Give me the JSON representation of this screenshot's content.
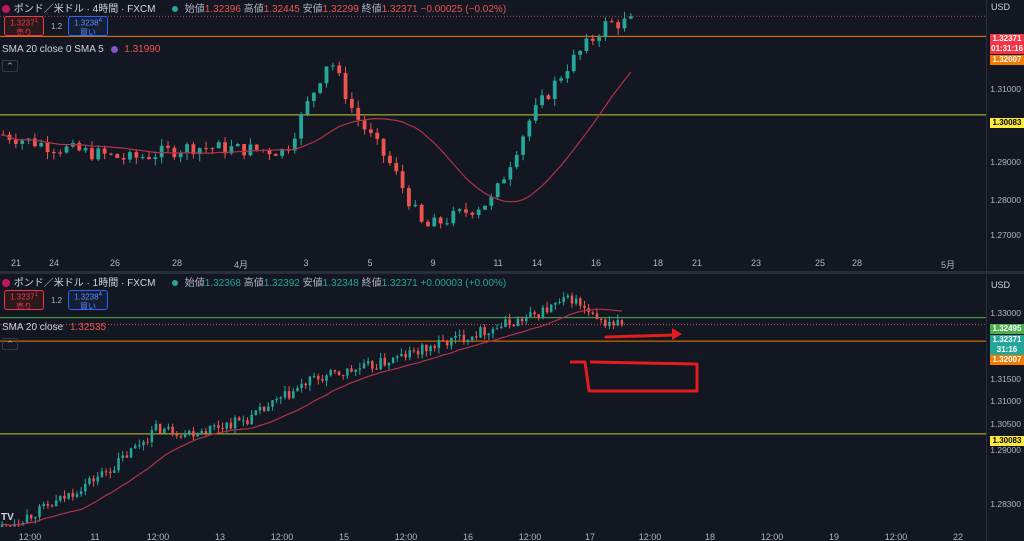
{
  "colors": {
    "bg": "#131722",
    "up": "#26a69a",
    "down": "#ef5350",
    "sma": "#b2334a",
    "yellow_line": "#c8c832",
    "orange_line": "#f57c00",
    "green_line": "#4caf50",
    "annotation": "#e11d1d"
  },
  "top_chart": {
    "title": "ポンド／米ドル · 4時間 · FXCM",
    "ohlc": {
      "open_label": "始値",
      "open": "1.32396",
      "high_label": "高値",
      "high": "1.32445",
      "low_label": "安値",
      "low": "1.32299",
      "close_label": "終値",
      "close": "1.32371",
      "change": "−0.00025 (−0.02%)"
    },
    "sell": {
      "price": "1.3237",
      "sup": "1",
      "label": "売り"
    },
    "buy": {
      "price": "1.3238",
      "sup": "4",
      "label": "買い"
    },
    "spread": "1.2",
    "indicator": {
      "label": "SMA 20 close 0 SMA 5",
      "value": "1.31990"
    },
    "collapse": "⌃",
    "scale_unit": "USD",
    "ticks": [
      "1.31000",
      "1.29000",
      "1.28000",
      "1.27000"
    ],
    "tags": {
      "last_price": "1.32371",
      "countdown": "01:31:16",
      "orange": "1.32007",
      "yellow": "1.30083"
    },
    "xaxis": [
      "21",
      "24",
      "26",
      "28",
      "4月",
      "3",
      "5",
      "9",
      "11",
      "14",
      "16",
      "18",
      "21",
      "23",
      "25",
      "28",
      "5月"
    ],
    "chart_data": {
      "type": "candlestick",
      "ylim": [
        1.266,
        1.329
      ],
      "sma_period": 20,
      "horizontal_lines": [
        {
          "price": 1.32007,
          "color": "orange"
        },
        {
          "price": 1.30083,
          "color": "yellow"
        }
      ]
    }
  },
  "bottom_chart": {
    "title": "ポンド／米ドル · 1時間 · FXCM",
    "ohlc": {
      "open_label": "始値",
      "open": "1.32368",
      "high_label": "高値",
      "high": "1.32392",
      "low_label": "安値",
      "low": "1.32348",
      "close_label": "終値",
      "close": "1.32371",
      "change": "+0.00003 (+0.00%)"
    },
    "sell": {
      "price": "1.3237",
      "sup": "1",
      "label": "売り"
    },
    "buy": {
      "price": "1.3238",
      "sup": "4",
      "label": "買い"
    },
    "spread": "1.2",
    "indicator": {
      "label": "SMA 20 close",
      "value": "1.32535"
    },
    "collapse": "⌃",
    "scale_unit": "USD",
    "ticks": [
      "1.33000",
      "1.31500",
      "1.31000",
      "1.30500",
      "1.29000",
      "1.28300"
    ],
    "tags": {
      "green": "1.32495",
      "last_price": "1.32371",
      "countdown": "31:16",
      "orange": "1.32007",
      "yellow": "1.30083"
    },
    "xaxis": [
      "12:00",
      "11",
      "12:00",
      "13",
      "12:00",
      "15",
      "12:00",
      "16",
      "12:00",
      "17",
      "12:00",
      "18",
      "12:00",
      "19",
      "12:00",
      "22"
    ],
    "tv_logo": "TV",
    "chart_data": {
      "type": "candlestick",
      "ylim": [
        1.2815,
        1.334
      ],
      "sma_period": 20,
      "horizontal_lines": [
        {
          "price": 1.32495,
          "color": "green"
        },
        {
          "price": 1.32007,
          "color": "orange"
        },
        {
          "price": 1.30083,
          "color": "yellow"
        }
      ]
    }
  }
}
